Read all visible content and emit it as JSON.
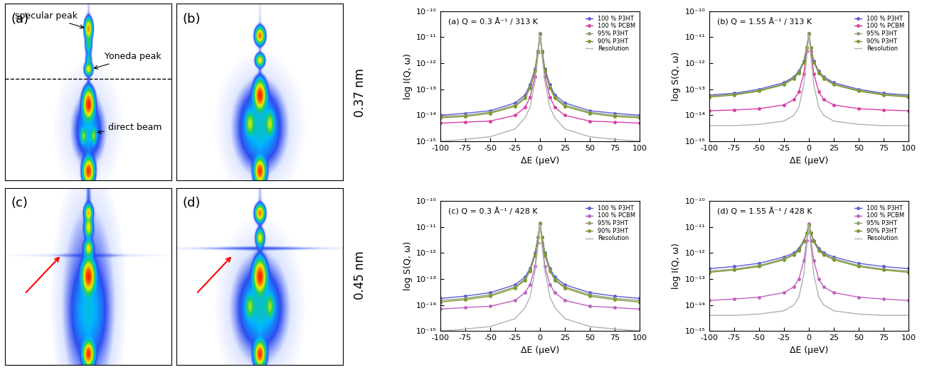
{
  "detector_images": {
    "panels": [
      {
        "label": "(a)",
        "annotations": [
          "specular peak",
          "Yoneda peak",
          "direct beam"
        ]
      },
      {
        "label": "(b)",
        "annotations": []
      },
      {
        "label": "(c)",
        "annotations": []
      },
      {
        "label": "(d)",
        "annotations": []
      }
    ],
    "row_labels": [
      "0.37 nm",
      "0.45 nm"
    ]
  },
  "chart_data": [
    {
      "type": "line",
      "title": "(a) Q = 0.3 Å⁻¹ / 313 K",
      "x_label": "ΔE (μeV)",
      "y_label": "log I(Q, ω)",
      "log": "y",
      "xlim": [
        -100,
        100
      ],
      "ylim": [
        1e-15,
        1e-10
      ],
      "xticks": [
        -100,
        -75,
        -50,
        -25,
        0,
        25,
        50,
        75,
        100
      ],
      "yticks": [
        {
          "value": 1e-15,
          "label": "10⁻¹⁵"
        },
        {
          "value": 1e-14,
          "label": "10⁻¹⁴"
        },
        {
          "value": 1e-13,
          "label": "10⁻¹³"
        },
        {
          "value": 1e-12,
          "label": "10⁻¹²"
        },
        {
          "value": 1e-11,
          "label": "10⁻¹¹"
        },
        {
          "value": 1e-10,
          "label": "10⁻¹⁰"
        }
      ],
      "legend": "upper right",
      "x": [
        -100,
        -75,
        -50,
        -25,
        -15,
        -10,
        -5,
        -2,
        0,
        2,
        5,
        10,
        15,
        25,
        50,
        75,
        100
      ],
      "series": [
        {
          "name": "100 % P3HT",
          "color": "#5b5bd6",
          "marker": "circle",
          "line_style": "solid",
          "values": [
            1e-14,
            1.2e-14,
            1.5e-14,
            3e-14,
            6e-14,
            1.5e-13,
            6e-13,
            3e-12,
            1.3e-11,
            3e-12,
            6e-13,
            1.5e-13,
            6e-14,
            3e-14,
            1.5e-14,
            1.2e-14,
            1e-14
          ]
        },
        {
          "name": "100 % PCBM",
          "color": "#d63fa8",
          "marker": "circle",
          "line_style": "solid",
          "values": [
            5e-15,
            5.5e-15,
            6e-15,
            1e-14,
            2e-14,
            5e-14,
            3e-13,
            2.5e-12,
            1.4e-11,
            2.5e-12,
            3e-13,
            5e-14,
            2e-14,
            1e-14,
            6e-15,
            5.5e-15,
            5e-15
          ]
        },
        {
          "name": "95% P3HT",
          "color": "#8e9a7a",
          "marker": "circle",
          "line_style": "solid",
          "values": [
            9e-15,
            1e-14,
            1.3e-14,
            2.5e-14,
            5e-14,
            1.2e-13,
            5e-13,
            3e-12,
            1.3e-11,
            3e-12,
            5e-13,
            1.2e-13,
            5e-14,
            2.5e-14,
            1.3e-14,
            1e-14,
            9e-15
          ]
        },
        {
          "name": "90% P3HT",
          "color": "#7a9a2a",
          "marker": "circle",
          "line_style": "solid",
          "values": [
            8e-15,
            9e-15,
            1.2e-14,
            2.2e-14,
            4.5e-14,
            1.1e-13,
            5e-13,
            3e-12,
            1.3e-11,
            3e-12,
            5e-13,
            1.1e-13,
            4.5e-14,
            2.2e-14,
            1.2e-14,
            9e-15,
            8e-15
          ]
        },
        {
          "name": "Resolution",
          "color": "#b0b0b0",
          "marker": "none",
          "line_style": "solid",
          "values": [
            1e-15,
            1.2e-15,
            1.5e-15,
            3e-15,
            8e-15,
            2e-14,
            2e-13,
            2e-12,
            1.3e-11,
            2e-12,
            2e-13,
            2e-14,
            8e-15,
            3e-15,
            1.5e-15,
            1.2e-15,
            1e-15
          ]
        }
      ]
    },
    {
      "type": "line",
      "title": "(b) Q = 1.55 Å⁻¹ / 313 K",
      "x_label": "ΔE (μeV)",
      "y_label": "log S(Q, ω)",
      "log": "y",
      "xlim": [
        -100,
        100
      ],
      "ylim": [
        1e-15,
        1e-10
      ],
      "xticks": [
        -100,
        -75,
        -50,
        -25,
        0,
        25,
        50,
        75,
        100
      ],
      "yticks": [
        {
          "value": 1e-15,
          "label": "10⁻¹⁵"
        },
        {
          "value": 1e-14,
          "label": "10⁻¹⁴"
        },
        {
          "value": 1e-13,
          "label": "10⁻¹³"
        },
        {
          "value": 1e-12,
          "label": "10⁻¹²"
        },
        {
          "value": 1e-11,
          "label": "10⁻¹¹"
        },
        {
          "value": 1e-10,
          "label": "10⁻¹⁰"
        }
      ],
      "legend": "upper right",
      "x": [
        -100,
        -75,
        -50,
        -25,
        -15,
        -10,
        -5,
        -2,
        0,
        2,
        5,
        10,
        15,
        25,
        50,
        75,
        100
      ],
      "series": [
        {
          "name": "100 % P3HT",
          "color": "#5b5bd6",
          "marker": "circle",
          "line_style": "solid",
          "values": [
            6e-14,
            7e-14,
            1e-13,
            1.8e-13,
            3e-13,
            5e-13,
            1.2e-12,
            4e-12,
            1.3e-11,
            4e-12,
            1.2e-12,
            5e-13,
            3e-13,
            1.8e-13,
            1e-13,
            7e-14,
            6e-14
          ]
        },
        {
          "name": "100 % PCBM",
          "color": "#d63fa8",
          "marker": "circle",
          "line_style": "solid",
          "values": [
            1.5e-14,
            1.6e-14,
            1.8e-14,
            2.5e-14,
            4e-14,
            8e-14,
            4e-13,
            3e-12,
            1.4e-11,
            3e-12,
            4e-13,
            8e-14,
            4e-14,
            2.5e-14,
            1.8e-14,
            1.6e-14,
            1.5e-14
          ]
        },
        {
          "name": "95% P3HT",
          "color": "#8e9a7a",
          "marker": "circle",
          "line_style": "solid",
          "values": [
            5.5e-14,
            6.5e-14,
            9e-14,
            1.6e-13,
            2.8e-13,
            4.5e-13,
            1.1e-12,
            4e-12,
            1.3e-11,
            4e-12,
            1.1e-12,
            4.5e-13,
            2.8e-13,
            1.6e-13,
            9e-14,
            6.5e-14,
            5.5e-14
          ]
        },
        {
          "name": "90% P3HT",
          "color": "#7a9a2a",
          "marker": "circle",
          "line_style": "solid",
          "values": [
            5e-14,
            6e-14,
            8.5e-14,
            1.5e-13,
            2.6e-13,
            4.2e-13,
            1.1e-12,
            4e-12,
            1.3e-11,
            4e-12,
            1.1e-12,
            4.2e-13,
            2.6e-13,
            1.5e-13,
            8.5e-14,
            6e-14,
            5e-14
          ]
        },
        {
          "name": "Resolution",
          "color": "#b0b0b0",
          "marker": "none",
          "line_style": "solid",
          "values": [
            4e-15,
            4e-15,
            4.5e-15,
            6e-15,
            1e-14,
            2e-14,
            1.5e-13,
            2e-12,
            1.3e-11,
            2e-12,
            1.5e-13,
            2e-14,
            1e-14,
            6e-15,
            4.5e-15,
            4e-15,
            4e-15
          ]
        }
      ]
    },
    {
      "type": "line",
      "title": "(c) Q = 0.3 Å⁻¹ / 428 K",
      "x_label": "ΔE (μeV)",
      "y_label": "log S(Q, ω)",
      "log": "y",
      "xlim": [
        -100,
        100
      ],
      "ylim": [
        1e-15,
        1e-10
      ],
      "xticks": [
        -100,
        -75,
        -50,
        -25,
        0,
        25,
        50,
        75,
        100
      ],
      "yticks": [
        {
          "value": 1e-15,
          "label": "10⁻¹⁵"
        },
        {
          "value": 1e-14,
          "label": "10⁻¹⁴"
        },
        {
          "value": 1e-13,
          "label": "10⁻¹³"
        },
        {
          "value": 1e-12,
          "label": "10⁻¹²"
        },
        {
          "value": 1e-11,
          "label": "10⁻¹¹"
        },
        {
          "value": 1e-10,
          "label": "10⁻¹⁰"
        }
      ],
      "legend": "upper right",
      "x": [
        -100,
        -75,
        -50,
        -25,
        -15,
        -10,
        -5,
        -2,
        0,
        2,
        5,
        10,
        15,
        25,
        50,
        75,
        100
      ],
      "series": [
        {
          "name": "100 % P3HT",
          "color": "#5b5bd6",
          "marker": "circle",
          "line_style": "solid",
          "values": [
            1.8e-14,
            2.2e-14,
            3e-14,
            6e-14,
            1.2e-13,
            2.5e-13,
            1e-12,
            4e-12,
            1.3e-11,
            4e-12,
            1e-12,
            2.5e-13,
            1.2e-13,
            6e-14,
            3e-14,
            2.2e-14,
            1.8e-14
          ]
        },
        {
          "name": "100 % PCBM",
          "color": "#c060c0",
          "marker": "circle",
          "line_style": "solid",
          "values": [
            7e-15,
            8e-15,
            9e-15,
            1.5e-14,
            3e-14,
            6e-14,
            3e-13,
            2.5e-12,
            1.4e-11,
            2.5e-12,
            3e-13,
            6e-14,
            3e-14,
            1.5e-14,
            9e-15,
            8e-15,
            7e-15
          ]
        },
        {
          "name": "95% P3HT",
          "color": "#8e9a7a",
          "marker": "circle",
          "line_style": "solid",
          "values": [
            1.5e-14,
            1.8e-14,
            2.5e-14,
            5e-14,
            1e-13,
            2.2e-13,
            9e-13,
            4e-12,
            1.3e-11,
            4e-12,
            9e-13,
            2.2e-13,
            1e-13,
            5e-14,
            2.5e-14,
            1.8e-14,
            1.5e-14
          ]
        },
        {
          "name": "90% P3HT",
          "color": "#7a9a2a",
          "marker": "circle",
          "line_style": "solid",
          "values": [
            1.3e-14,
            1.6e-14,
            2.2e-14,
            4.5e-14,
            9e-14,
            2e-13,
            8e-13,
            4e-12,
            1.3e-11,
            4e-12,
            8e-13,
            2e-13,
            9e-14,
            4.5e-14,
            2.2e-14,
            1.6e-14,
            1.3e-14
          ]
        },
        {
          "name": "Resolution",
          "color": "#b0b0b0",
          "marker": "none",
          "line_style": "solid",
          "values": [
            1e-15,
            1.2e-15,
            1.5e-15,
            3e-15,
            8e-15,
            2e-14,
            2e-13,
            2e-12,
            1.3e-11,
            2e-12,
            2e-13,
            2e-14,
            8e-15,
            3e-15,
            1.5e-15,
            1.2e-15,
            1e-15
          ]
        }
      ]
    },
    {
      "type": "line",
      "title": "(d) Q = 1.55 Å⁻¹ / 428 K",
      "x_label": "ΔE (μeV)",
      "y_label": "log I(Q, ω)",
      "log": "y",
      "xlim": [
        -100,
        100
      ],
      "ylim": [
        1e-15,
        1e-10
      ],
      "xticks": [
        -100,
        -75,
        -50,
        -25,
        0,
        25,
        50,
        75,
        100
      ],
      "yticks": [
        {
          "value": 1e-15,
          "label": "10⁻¹⁵"
        },
        {
          "value": 1e-14,
          "label": "10⁻¹⁴"
        },
        {
          "value": 1e-13,
          "label": "10⁻¹³"
        },
        {
          "value": 1e-12,
          "label": "10⁻¹²"
        },
        {
          "value": 1e-11,
          "label": "10⁻¹¹"
        },
        {
          "value": 1e-10,
          "label": "10⁻¹⁰"
        }
      ],
      "legend": "upper right",
      "x": [
        -100,
        -75,
        -50,
        -25,
        -15,
        -10,
        -5,
        -2,
        0,
        2,
        5,
        10,
        15,
        25,
        50,
        75,
        100
      ],
      "series": [
        {
          "name": "100 % P3HT",
          "color": "#5b5bd6",
          "marker": "circle",
          "line_style": "solid",
          "values": [
            2.5e-13,
            3e-13,
            4e-13,
            7e-13,
            1e-12,
            1.5e-12,
            3e-12,
            6e-12,
            1.2e-11,
            6e-12,
            3e-12,
            1.5e-12,
            1e-12,
            7e-13,
            4e-13,
            3e-13,
            2.5e-13
          ]
        },
        {
          "name": "100 % PCBM",
          "color": "#c060c0",
          "marker": "circle",
          "line_style": "solid",
          "values": [
            1.5e-14,
            1.7e-14,
            2e-14,
            3e-14,
            5e-14,
            1e-13,
            5e-13,
            3e-12,
            1.3e-11,
            3e-12,
            5e-13,
            1e-13,
            5e-14,
            3e-14,
            2e-14,
            1.7e-14,
            1.5e-14
          ]
        },
        {
          "name": "95% P3HT",
          "color": "#8e9a7a",
          "marker": "circle",
          "line_style": "solid",
          "values": [
            2e-13,
            2.4e-13,
            3.3e-13,
            6e-13,
            9e-13,
            1.3e-12,
            2.8e-12,
            6e-12,
            1.2e-11,
            6e-12,
            2.8e-12,
            1.3e-12,
            9e-13,
            6e-13,
            3.3e-13,
            2.4e-13,
            2e-13
          ]
        },
        {
          "name": "90% P3HT",
          "color": "#7a9a2a",
          "marker": "circle",
          "line_style": "solid",
          "values": [
            1.8e-13,
            2.2e-13,
            3e-13,
            5.5e-13,
            8.5e-13,
            1.2e-12,
            2.7e-12,
            6e-12,
            1.2e-11,
            6e-12,
            2.7e-12,
            1.2e-12,
            8.5e-13,
            5.5e-13,
            3e-13,
            2.2e-13,
            1.8e-13
          ]
        },
        {
          "name": "Resolution",
          "color": "#b0b0b0",
          "marker": "none",
          "line_style": "solid",
          "values": [
            4e-15,
            4e-15,
            4.5e-15,
            6e-15,
            1e-14,
            2e-14,
            1.5e-13,
            2e-12,
            1.3e-11,
            2e-12,
            1.5e-13,
            2e-14,
            1e-14,
            6e-15,
            4.5e-15,
            4e-15,
            4e-15
          ]
        }
      ]
    }
  ]
}
